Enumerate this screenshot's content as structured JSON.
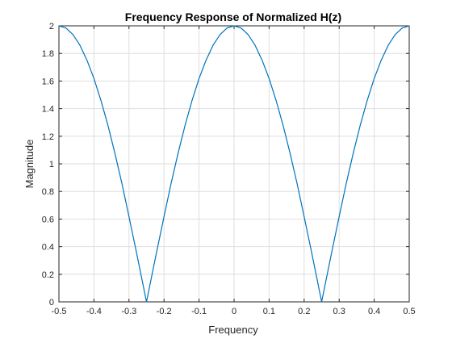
{
  "chart_data": {
    "type": "line",
    "title": "Frequency Response of Normalized H(z)",
    "xlabel": "Frequency",
    "ylabel": "Magnitude",
    "xlim": [
      -0.5,
      0.5
    ],
    "ylim": [
      0,
      2
    ],
    "x_ticks": [
      -0.5,
      -0.4,
      -0.3,
      -0.2,
      -0.1,
      0,
      0.1,
      0.2,
      0.3,
      0.4,
      0.5
    ],
    "x_tick_labels": [
      "-0.5",
      "-0.4",
      "-0.3",
      "-0.2",
      "-0.1",
      "0",
      "0.1",
      "0.2",
      "0.3",
      "0.4",
      "0.5"
    ],
    "y_ticks": [
      0,
      0.2,
      0.4,
      0.6,
      0.8,
      1,
      1.2,
      1.4,
      1.6,
      1.8,
      2
    ],
    "y_tick_labels": [
      "0",
      "0.2",
      "0.4",
      "0.6",
      "0.8",
      "1",
      "1.2",
      "1.4",
      "1.6",
      "1.8",
      "2"
    ],
    "grid": true,
    "series": [
      {
        "color": "#0072bd",
        "x": [
          -0.5,
          -0.48,
          -0.46,
          -0.44,
          -0.42,
          -0.4,
          -0.38,
          -0.36,
          -0.34,
          -0.32,
          -0.3,
          -0.28,
          -0.26,
          -0.25,
          -0.24,
          -0.22,
          -0.2,
          -0.18,
          -0.16,
          -0.14,
          -0.12,
          -0.1,
          -0.08,
          -0.06,
          -0.04,
          -0.02,
          0,
          0.02,
          0.04,
          0.06,
          0.08,
          0.1,
          0.12,
          0.14,
          0.16,
          0.18,
          0.2,
          0.22,
          0.24,
          0.25,
          0.26,
          0.28,
          0.3,
          0.32,
          0.34,
          0.36,
          0.38,
          0.4,
          0.42,
          0.44,
          0.46,
          0.48,
          0.5
        ],
        "y": [
          2.0,
          1.984,
          1.937,
          1.859,
          1.751,
          1.618,
          1.459,
          1.278,
          1.075,
          0.856,
          0.618,
          0.375,
          0.126,
          0.0,
          0.126,
          0.375,
          0.618,
          0.856,
          1.075,
          1.278,
          1.459,
          1.618,
          1.751,
          1.859,
          1.937,
          1.984,
          2.0,
          1.984,
          1.937,
          1.859,
          1.751,
          1.618,
          1.459,
          1.278,
          1.075,
          0.856,
          0.618,
          0.375,
          0.126,
          0.0,
          0.126,
          0.375,
          0.618,
          0.856,
          1.075,
          1.278,
          1.459,
          1.618,
          1.751,
          1.859,
          1.937,
          1.984,
          2.0
        ]
      }
    ]
  }
}
